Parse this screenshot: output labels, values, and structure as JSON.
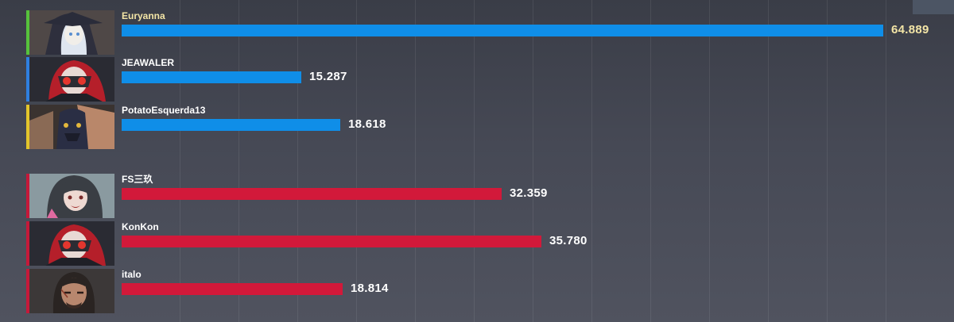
{
  "colors": {
    "team_blue": "#0f8ee8",
    "team_red": "#d2193a",
    "highlight": "#f3e5a6"
  },
  "chart_data": {
    "type": "bar",
    "orientation": "horizontal",
    "xlim": [
      0,
      70
    ],
    "series": [
      {
        "team": "blue",
        "players": [
          {
            "name": "Euryanna",
            "value": 64.889,
            "label": "64.889",
            "highlight": true,
            "stripe": "#56c23c",
            "icon": "white-hair-mage-portrait"
          },
          {
            "name": "JEAWALER",
            "value": 15.287,
            "label": "15.287",
            "highlight": false,
            "stripe": "#2f7fe0",
            "icon": "red-hair-masked-portrait"
          },
          {
            "name": "PotatoEsquerda13",
            "value": 18.618,
            "label": "18.618",
            "highlight": false,
            "stripe": "#e3c52b",
            "icon": "dark-armored-portrait"
          }
        ]
      },
      {
        "team": "red",
        "players": [
          {
            "name": "FS三玖",
            "value": 32.359,
            "label": "32.359",
            "highlight": false,
            "stripe": "#c5193a",
            "icon": "dark-hair-girl-portrait"
          },
          {
            "name": "KonKon",
            "value": 35.78,
            "label": "35.780",
            "highlight": false,
            "stripe": "#c5193a",
            "icon": "red-hair-masked-portrait"
          },
          {
            "name": "italo",
            "value": 18.814,
            "label": "18.814",
            "highlight": false,
            "stripe": "#c5193a",
            "icon": "scarred-man-portrait"
          }
        ]
      }
    ]
  }
}
